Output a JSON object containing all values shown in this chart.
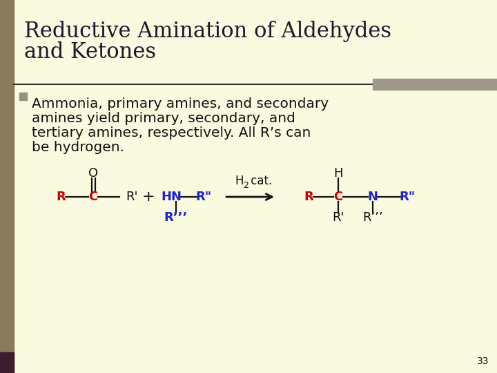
{
  "title_line1": "Reductive Amination of Aldehydes",
  "title_line2": "and Ketones",
  "title_fontsize": 22,
  "title_color": "#1a1a2e",
  "bg_color": "#FAFAE0",
  "left_bar_color": "#8B7B5A",
  "left_bar_dark": "#3d1c2e",
  "top_bar_color": "#A0998A",
  "bullet_color": "#9A9080",
  "bullet_fontsize": 14.5,
  "page_number": "33",
  "red": "#CC0000",
  "blue": "#2222CC",
  "black": "#111111",
  "line_color": "#333333",
  "chem_fs": 13,
  "chem_lw": 1.6
}
